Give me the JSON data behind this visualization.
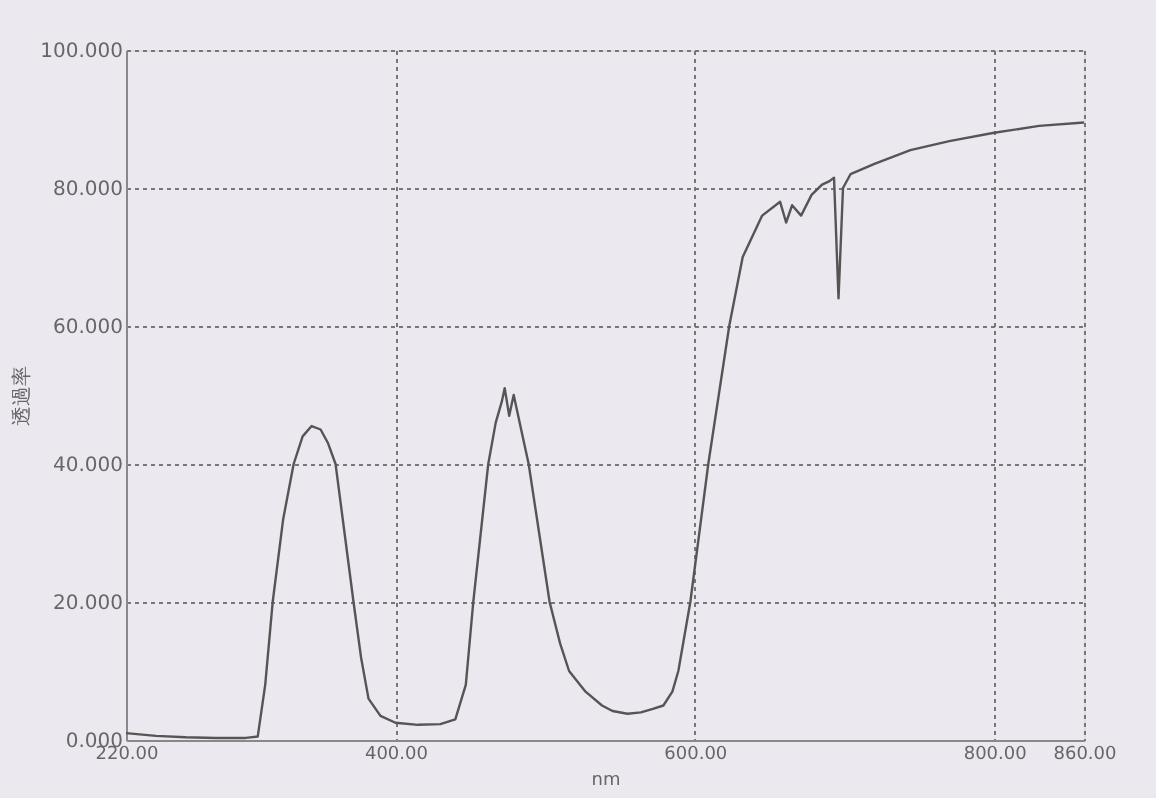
{
  "chart_data": {
    "type": "line",
    "xlabel": "nm",
    "ylabel": "透過率",
    "xlim": [
      220,
      860
    ],
    "xticks": [
      {
        "value": 220,
        "label": "220.00"
      },
      {
        "value": 400,
        "label": "400.00"
      },
      {
        "value": 600,
        "label": "600.00"
      },
      {
        "value": 800,
        "label": "800.00"
      },
      {
        "value": 860,
        "label": "860.00"
      }
    ],
    "ylim": [
      0,
      100
    ],
    "yticks": [
      {
        "value": 0,
        "label": "0.000"
      },
      {
        "value": 20,
        "label": "20.000"
      },
      {
        "value": 40,
        "label": "40.000"
      },
      {
        "value": 60,
        "label": "60.000"
      },
      {
        "value": 80,
        "label": "80.000"
      },
      {
        "value": 100,
        "label": "100.000"
      }
    ],
    "grid": true,
    "line_style": "solid",
    "marker": "none",
    "series": [
      {
        "color": "#555555",
        "x": [
          220,
          240,
          260,
          280,
          300,
          308,
          313,
          318,
          325,
          332,
          338,
          344,
          350,
          355,
          360,
          366,
          372,
          377,
          382,
          390,
          400,
          415,
          430,
          440,
          447,
          452,
          457,
          462,
          467,
          471,
          473,
          476,
          479,
          482,
          485,
          489,
          496,
          503,
          510,
          516,
          527,
          538,
          545,
          555,
          564,
          572,
          579,
          585,
          589,
          597,
          603,
          609,
          616,
          623,
          632,
          645,
          657,
          661,
          665,
          671,
          678,
          685,
          690,
          693,
          696,
          699,
          704,
          720,
          744,
          770,
          800,
          830,
          860
        ],
        "values": [
          1,
          0.6,
          0.4,
          0.3,
          0.3,
          0.5,
          8,
          20,
          32,
          40,
          44,
          45.5,
          45,
          43,
          40,
          30,
          20,
          12,
          6,
          3.5,
          2.5,
          2.2,
          2.3,
          3,
          8,
          20,
          30,
          40,
          46,
          49,
          51,
          47,
          50,
          47,
          44,
          40,
          30,
          20,
          14,
          10,
          7,
          5,
          4.2,
          3.8,
          4,
          4.5,
          5,
          7,
          10,
          20,
          30,
          40,
          50,
          60,
          70,
          76,
          78,
          75,
          77.5,
          76,
          79,
          80.5,
          81,
          81.5,
          64,
          80,
          82,
          83.5,
          85.5,
          86.8,
          88,
          89,
          89.5
        ]
      }
    ]
  }
}
